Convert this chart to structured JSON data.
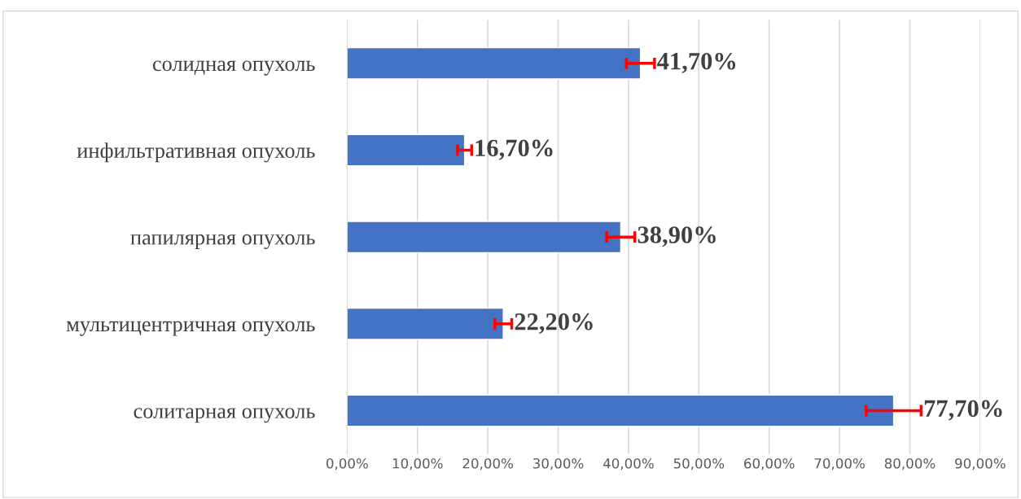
{
  "chart_data": {
    "type": "bar",
    "orientation": "horizontal",
    "categories": [
      "солидная опухоль",
      "инфильтративная опухоль",
      "папилярная опухоль",
      "мультицентричная опухоль",
      "солитарная опухоль"
    ],
    "values": [
      41.7,
      16.7,
      38.9,
      22.2,
      77.7
    ],
    "errors": [
      2,
      1,
      2,
      1.2,
      3.9
    ],
    "value_labels": [
      "41,70%",
      "16,70%",
      "38,90%",
      "22,20%",
      "77,70%"
    ],
    "color": "#4472c4",
    "xlim": [
      0,
      90
    ],
    "xticks": [
      {
        "value": 0,
        "label": "0,00%"
      },
      {
        "value": 10,
        "label": "10,00%"
      },
      {
        "value": 20,
        "label": "20,00%"
      },
      {
        "value": 30,
        "label": "30,00%"
      },
      {
        "value": 40,
        "label": "40,00%"
      },
      {
        "value": 50,
        "label": "50,00%"
      },
      {
        "value": 60,
        "label": "60,00%"
      },
      {
        "value": 70,
        "label": "70,00%"
      },
      {
        "value": 80,
        "label": "80,00%"
      },
      {
        "value": 90,
        "label": "90,00%"
      }
    ],
    "grid": "x"
  }
}
